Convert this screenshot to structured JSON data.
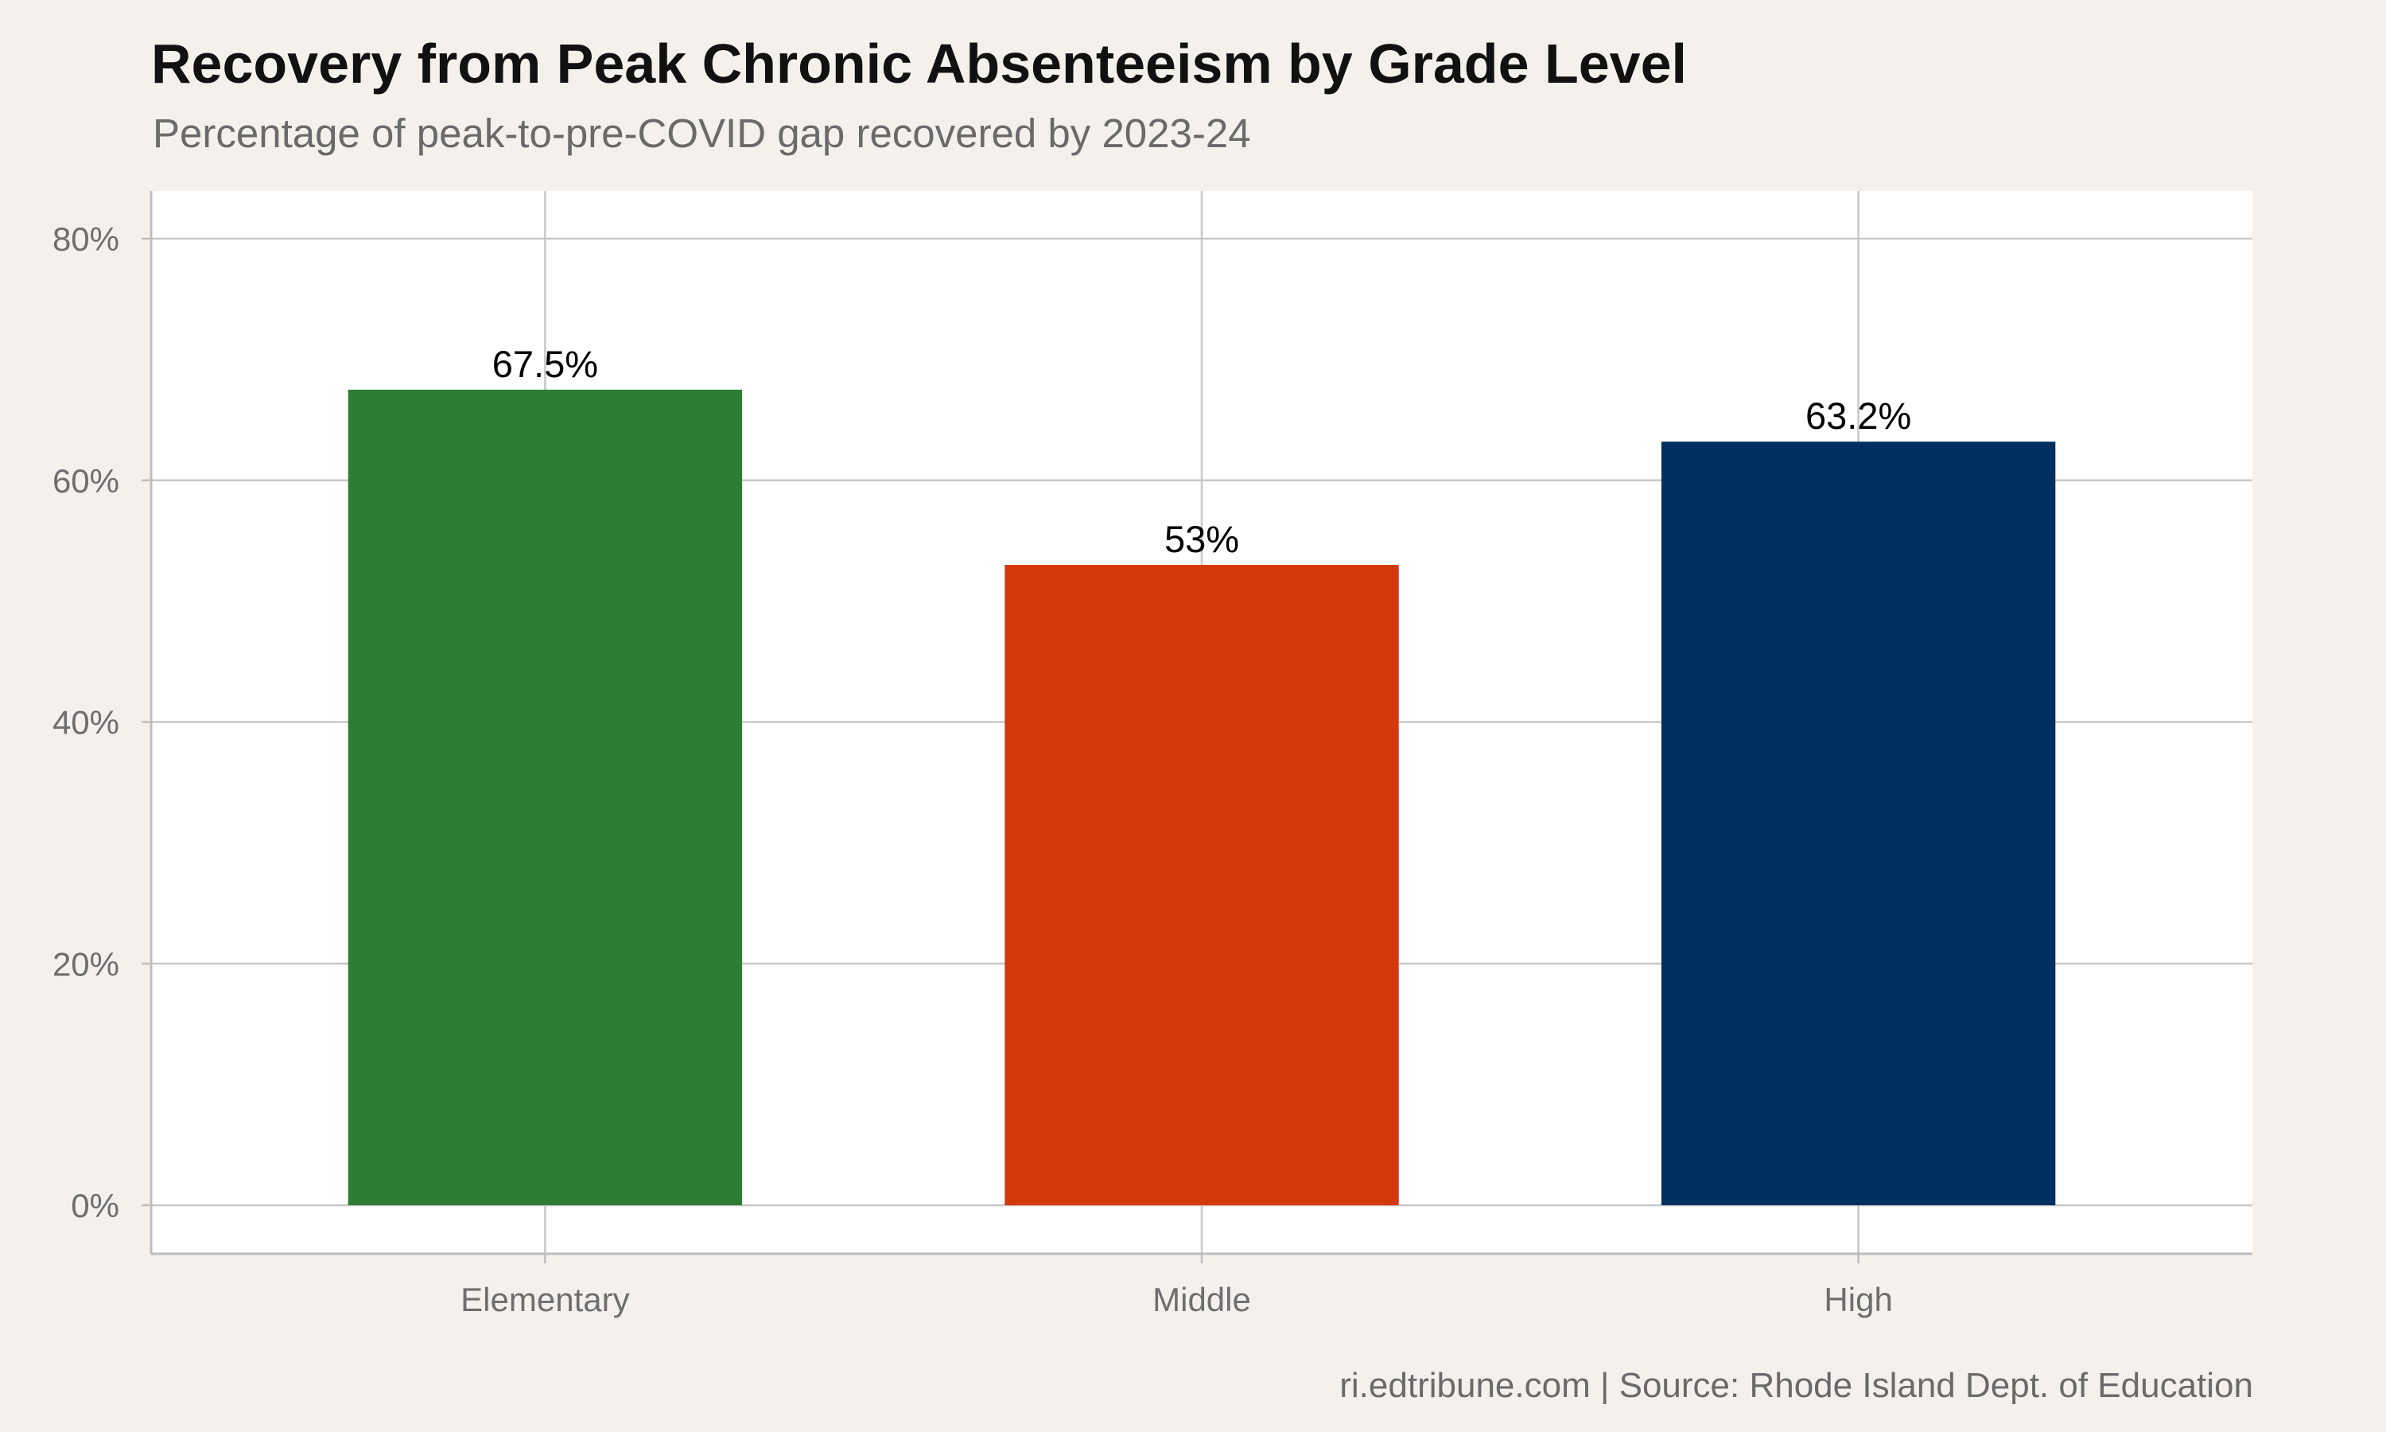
{
  "chart_data": {
    "type": "bar",
    "title": "Recovery from Peak Chronic Absenteeism by Grade Level",
    "subtitle": "Percentage of peak-to-pre-COVID gap recovered by 2023-24",
    "caption": "ri.edtribune.com | Source: Rhode Island Dept. of Education",
    "xlabel": "",
    "ylabel": "",
    "categories": [
      "Elementary",
      "Middle",
      "High"
    ],
    "values": [
      67.5,
      53,
      63.2
    ],
    "data_labels": [
      "67.5%",
      "53%",
      "63.2%"
    ],
    "bar_colors": [
      "#2E7D32",
      "#D4380D",
      "#00305F"
    ],
    "ylim": [
      0,
      84
    ],
    "yticks": [
      0,
      20,
      40,
      60,
      80
    ],
    "ytick_labels": [
      "0%",
      "20%",
      "40%",
      "60%",
      "80%"
    ],
    "grid": true,
    "legend": "none"
  },
  "colors": {
    "page_background": "#F4F1EC",
    "panel_background": "#FFFFFF",
    "grid": "#C8C8C8",
    "axis": "#BDBDBD"
  }
}
